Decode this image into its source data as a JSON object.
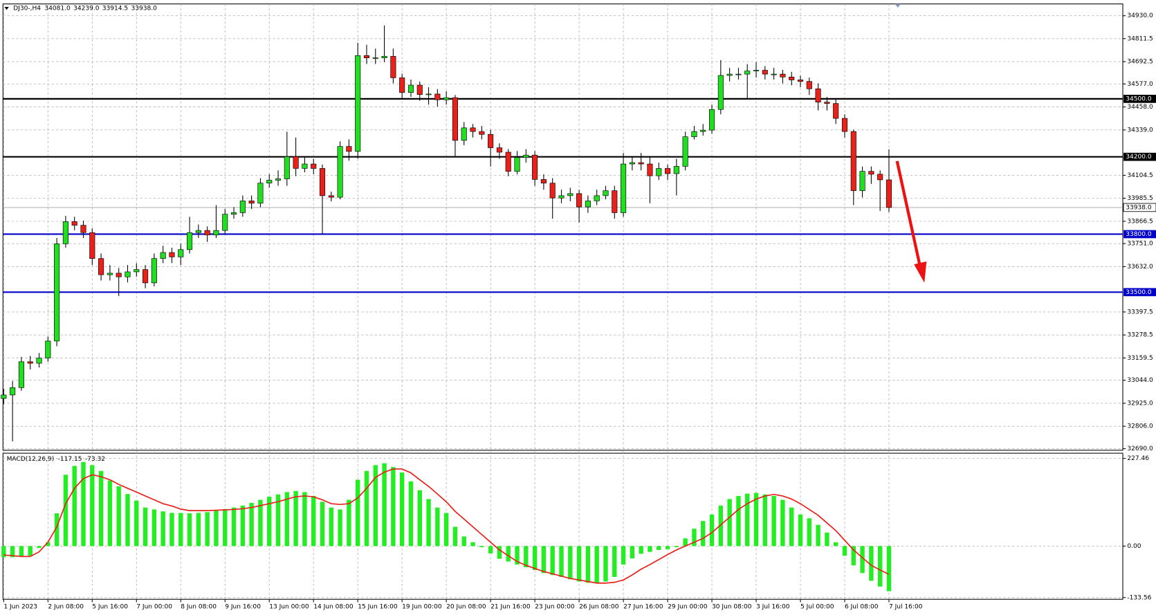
{
  "chart_data": [
    {
      "type": "candlestick",
      "title": "DJ30-,H4",
      "header": [
        {
          "value": 34081,
          "label": "34081.0"
        },
        {
          "value": 34239,
          "label": "34239.0"
        },
        {
          "value": 33914.5,
          "label": "33914.5"
        },
        {
          "value": 33938,
          "label": "33938.0"
        }
      ],
      "categories": [
        "1 Jun 2023",
        null,
        null,
        null,
        null,
        "2 Jun 08:00",
        null,
        null,
        null,
        null,
        "5 Jun 16:00",
        null,
        null,
        null,
        null,
        "7 Jun 00:00",
        null,
        null,
        null,
        null,
        "8 Jun 08:00",
        null,
        null,
        null,
        null,
        "9 Jun 16:00",
        null,
        null,
        null,
        null,
        "13 Jun 00:00",
        null,
        null,
        null,
        null,
        "14 Jun 08:00",
        null,
        null,
        null,
        null,
        "15 Jun 16:00",
        null,
        null,
        null,
        null,
        "19 Jun 00:00",
        null,
        null,
        null,
        null,
        "20 Jun 08:00",
        null,
        null,
        null,
        null,
        "21 Jun 16:00",
        null,
        null,
        null,
        null,
        "23 Jun 00:00",
        null,
        null,
        null,
        null,
        "26 Jun 08:00",
        null,
        null,
        null,
        null,
        "27 Jun 16:00",
        null,
        null,
        null,
        null,
        "29 Jun 00:00",
        null,
        null,
        null,
        null,
        "30 Jun 08:00",
        null,
        null,
        null,
        null,
        "3 Jul 16:00",
        null,
        null,
        null,
        null,
        "5 Jul 00:00",
        null,
        null,
        null,
        null,
        "6 Jul 08:00",
        null,
        null,
        null,
        null,
        "7 Jul 16:00"
      ],
      "open": [
        32950,
        32968,
        33006,
        33140,
        33132,
        33159,
        33247,
        33750,
        33865,
        33846,
        33808,
        33674,
        33590,
        33598,
        33579,
        33605,
        33617,
        33548,
        33674,
        33705,
        33682,
        33720,
        33808,
        33819,
        33796,
        33819,
        33903,
        33911,
        33972,
        33960,
        34064,
        34079,
        34086,
        34201,
        34140,
        34163,
        34140,
        33999,
        33991,
        34254,
        34228,
        34724,
        34712,
        34712,
        34720,
        34609,
        34533,
        34571,
        34522,
        34525,
        34495,
        34506,
        34285,
        34350,
        34331,
        34316,
        34247,
        34224,
        34125,
        34197,
        34209,
        34083,
        34064,
        33987,
        33999,
        34010,
        33941,
        33972,
        33999,
        34025,
        33911,
        34163,
        34170,
        34163,
        34102,
        34140,
        34113,
        34151,
        34304,
        34331,
        34338,
        34445,
        34621,
        34628,
        34628,
        34644,
        34648,
        34628,
        34628,
        34613,
        34598,
        34590,
        34552,
        34483,
        34476,
        34399,
        34331,
        34025,
        34125,
        34110,
        34081
      ],
      "high": [
        33000,
        33040,
        33165,
        33170,
        33185,
        33270,
        33780,
        33895,
        33890,
        33870,
        33830,
        33700,
        33640,
        33625,
        33640,
        33650,
        33640,
        33700,
        33740,
        33730,
        33750,
        33890,
        33850,
        33840,
        33950,
        33930,
        33940,
        34000,
        34000,
        34090,
        34110,
        34130,
        34330,
        34300,
        34200,
        34190,
        34160,
        34020,
        34280,
        34290,
        34790,
        34780,
        34760,
        34880,
        34760,
        34630,
        34600,
        34590,
        34560,
        34550,
        34540,
        34520,
        34380,
        34370,
        34360,
        34340,
        34270,
        34240,
        34230,
        34240,
        34230,
        34110,
        34090,
        34030,
        34040,
        34030,
        34000,
        34030,
        34050,
        34050,
        34220,
        34200,
        34220,
        34200,
        34170,
        34160,
        34190,
        34330,
        34360,
        34370,
        34470,
        34700,
        34660,
        34660,
        34680,
        34690,
        34670,
        34660,
        34650,
        34640,
        34620,
        34610,
        34580,
        34510,
        34500,
        34420,
        34340,
        34150,
        34150,
        34130,
        34239
      ],
      "low": [
        32920,
        32728,
        32990,
        33100,
        33110,
        33140,
        33220,
        33730,
        33820,
        33780,
        33640,
        33560,
        33560,
        33480,
        33550,
        33580,
        33520,
        33530,
        33650,
        33650,
        33640,
        33700,
        33780,
        33760,
        33780,
        33800,
        33880,
        33890,
        33930,
        33940,
        34040,
        34050,
        34050,
        34100,
        34120,
        34110,
        33800,
        33970,
        33980,
        34180,
        34190,
        34680,
        34680,
        34690,
        34580,
        34500,
        34510,
        34490,
        34470,
        34460,
        34470,
        34200,
        34260,
        34300,
        34290,
        34150,
        34190,
        34100,
        34110,
        34170,
        34050,
        34030,
        33880,
        33960,
        33970,
        33860,
        33910,
        33950,
        33980,
        33880,
        33890,
        34130,
        34130,
        33960,
        34080,
        34080,
        34000,
        34130,
        34290,
        34310,
        34320,
        34420,
        34590,
        34600,
        34500,
        34610,
        34600,
        34600,
        34580,
        34570,
        34560,
        34520,
        34440,
        34440,
        34370,
        34300,
        33950,
        33990,
        34060,
        33920,
        33914.5
      ],
      "close": [
        32968,
        33006,
        33140,
        33132,
        33159,
        33247,
        33750,
        33865,
        33846,
        33808,
        33674,
        33590,
        33598,
        33579,
        33605,
        33617,
        33548,
        33674,
        33705,
        33682,
        33720,
        33808,
        33819,
        33796,
        33819,
        33903,
        33911,
        33972,
        33960,
        34064,
        34079,
        34086,
        34201,
        34140,
        34163,
        34140,
        33999,
        33991,
        34254,
        34228,
        34724,
        34712,
        34712,
        34720,
        34609,
        34533,
        34571,
        34522,
        34525,
        34495,
        34506,
        34285,
        34350,
        34331,
        34316,
        34247,
        34224,
        34125,
        34197,
        34209,
        34083,
        34064,
        33987,
        33999,
        34010,
        33941,
        33972,
        33999,
        34025,
        33911,
        34163,
        34170,
        34163,
        34102,
        34140,
        34113,
        34151,
        34304,
        34331,
        34338,
        34445,
        34621,
        34628,
        34628,
        34644,
        34648,
        34628,
        34628,
        34613,
        34598,
        34590,
        34552,
        34483,
        34476,
        34399,
        34331,
        34025,
        34125,
        34110,
        34081,
        33938
      ],
      "up_color": "#22dd22",
      "down_color": "#e8211a",
      "ylim": [
        32682,
        34991
      ],
      "yticks": [
        {
          "value": 34930,
          "label": "34930.0"
        },
        {
          "value": 34811.5,
          "label": "34811.5"
        },
        {
          "value": 34692.5,
          "label": "34692.5"
        },
        {
          "value": 34577,
          "label": "34577.0"
        },
        {
          "value": 34458,
          "label": "34458.0"
        },
        {
          "value": 34339,
          "label": "34339.0"
        },
        {
          "value": 34104.5,
          "label": "34104.5"
        },
        {
          "value": 33985.5,
          "label": "33985.5"
        },
        {
          "value": 33866.5,
          "label": "33866.5"
        },
        {
          "value": 33751,
          "label": "33751.0"
        },
        {
          "value": 33632,
          "label": "33632.0"
        },
        {
          "value": 33397.5,
          "label": "33397.5"
        },
        {
          "value": 33278.5,
          "label": "33278.5"
        },
        {
          "value": 33159.5,
          "label": "33159.5"
        },
        {
          "value": 33044,
          "label": "33044.0"
        },
        {
          "value": 32925,
          "label": "32925.0"
        },
        {
          "value": 32806,
          "label": "32806.0"
        },
        {
          "value": 32690,
          "label": "32690.0"
        }
      ],
      "levels": [
        {
          "value": 34500,
          "label": "34500.0",
          "color": "#000000"
        },
        {
          "value": 34200,
          "label": "34200.0",
          "color": "#000000"
        },
        {
          "value": 33800,
          "label": "33800.0",
          "color": "#0000c8"
        },
        {
          "value": 33500,
          "label": "33500.0",
          "color": "#0000c8"
        }
      ],
      "current_price": {
        "value": 33938,
        "label": "33938.0"
      },
      "grid": true
    },
    {
      "type": "macd",
      "title": "MACD(12,26,9)",
      "header": [
        -117.15,
        -73.32
      ],
      "histogram": {
        "color": "#22ee22",
        "values": [
          -29,
          -29,
          -27,
          -25,
          -5,
          10,
          85,
          185,
          208,
          218,
          210,
          195,
          170,
          155,
          135,
          118,
          100,
          95,
          90,
          86,
          86,
          85,
          86,
          88,
          92,
          96,
          100,
          105,
          112,
          120,
          128,
          134,
          140,
          143,
          140,
          130,
          115,
          100,
          95,
          120,
          172,
          195,
          210,
          215,
          205,
          191,
          168,
          145,
          122,
          100,
          86,
          50,
          25,
          10,
          -3,
          -19,
          -33,
          -40,
          -48,
          -55,
          -62,
          -70,
          -75,
          -80,
          -86,
          -92,
          -95,
          -96,
          -92,
          -80,
          -48,
          -32,
          -20,
          -15,
          -10,
          -8,
          -3,
          20,
          45,
          65,
          82,
          105,
          122,
          130,
          136,
          138,
          134,
          130,
          120,
          100,
          82,
          72,
          55,
          35,
          10,
          -25,
          -50,
          -70,
          -90,
          -105,
          -117.15
        ]
      },
      "signal": {
        "color": "#e8211a",
        "values": [
          -23,
          -25,
          -27,
          -27,
          -15,
          10,
          50,
          110,
          150,
          175,
          185,
          180,
          172,
          160,
          150,
          140,
          130,
          120,
          110,
          104,
          96,
          92,
          92,
          92,
          93,
          94,
          95,
          97,
          100,
          105,
          110,
          115,
          122,
          128,
          130,
          128,
          120,
          110,
          108,
          110,
          125,
          150,
          178,
          192,
          200,
          200,
          190,
          172,
          155,
          135,
          115,
          90,
          70,
          50,
          30,
          10,
          -10,
          -25,
          -40,
          -50,
          -58,
          -66,
          -72,
          -78,
          -84,
          -88,
          -92,
          -96,
          -96,
          -94,
          -88,
          -75,
          -60,
          -48,
          -35,
          -22,
          -10,
          0,
          10,
          20,
          35,
          55,
          75,
          95,
          110,
          122,
          130,
          134,
          130,
          122,
          110,
          95,
          80,
          60,
          40,
          15,
          -10,
          -30,
          -50,
          -62,
          -73.32
        ]
      },
      "ylim": [
        -138,
        241
      ],
      "yticks": [
        227.46,
        {
          "value": 0,
          "label": "0.00"
        },
        -133.56
      ],
      "grid": true
    }
  ]
}
